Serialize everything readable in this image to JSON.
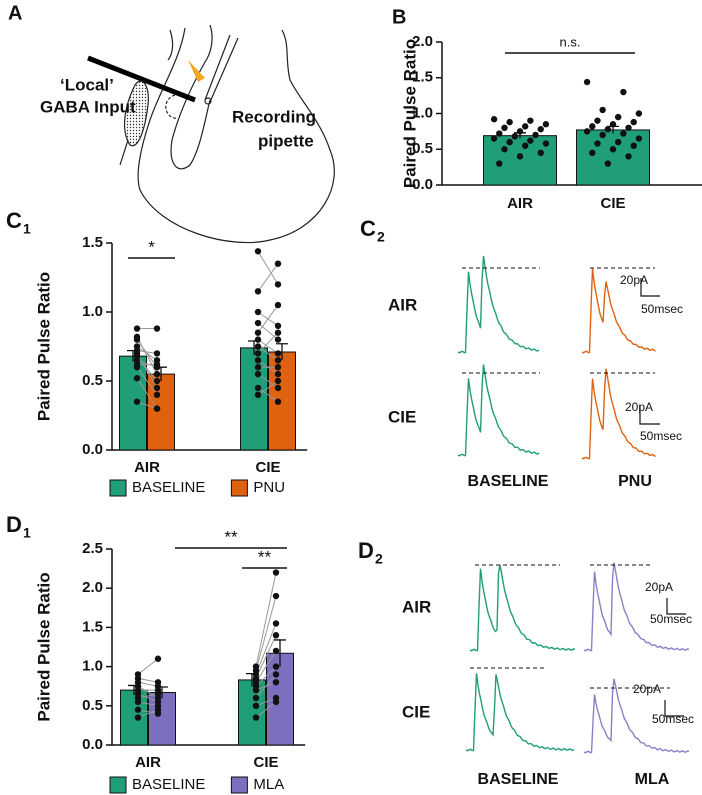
{
  "panel_labels": {
    "a": "A",
    "b": "B",
    "c1": {
      "letter": "C",
      "sub": "1"
    },
    "c2": {
      "letter": "C",
      "sub": "2"
    },
    "d1": {
      "letter": "D",
      "sub": "1"
    },
    "d2": {
      "letter": "D",
      "sub": "2"
    }
  },
  "diagram": {
    "input_line1": "‘Local’",
    "input_line2": "GABA Input",
    "pipette_line1": "Recording",
    "pipette_line2": "pipette"
  },
  "traces_c2": {
    "rows": [
      "AIR",
      "CIE"
    ],
    "columns": [
      "BASELINE",
      "PNU"
    ],
    "scale_y": [
      "20pA",
      "20pA"
    ],
    "scale_x": [
      "50msec",
      "50msec"
    ]
  },
  "traces_d2": {
    "rows": [
      "AIR",
      "CIE"
    ],
    "columns": [
      "BASELINE",
      "MLA"
    ],
    "scale_y": [
      "20pA",
      "20pA"
    ],
    "scale_x": [
      "50msec",
      "50msec"
    ]
  },
  "chart_data": [
    {
      "type": "bar",
      "ylabel": "Paired Pulse Ratio",
      "categories": [
        "AIR",
        "CIE"
      ],
      "series": [
        {
          "color": "#1f9e78",
          "values": [
            0.69,
            0.77
          ],
          "errors": [
            0.04,
            0.05
          ],
          "points": [
            [
              0.92,
              0.9,
              0.88,
              0.85,
              0.82,
              0.8,
              0.78,
              0.75,
              0.72,
              0.7,
              0.68,
              0.65,
              0.62,
              0.6,
              0.58,
              0.55,
              0.5,
              0.45,
              0.4,
              0.3
            ],
            [
              1.44,
              1.3,
              1.05,
              1.0,
              0.95,
              0.9,
              0.88,
              0.85,
              0.82,
              0.8,
              0.78,
              0.75,
              0.72,
              0.7,
              0.65,
              0.6,
              0.58,
              0.55,
              0.5,
              0.45,
              0.4,
              0.3
            ]
          ]
        }
      ],
      "ylim": [
        0,
        2
      ],
      "yticks": [
        {
          "value": 0,
          "label": "0.0"
        },
        0.5,
        {
          "value": 1,
          "label": "1.0"
        },
        1.5,
        {
          "value": 2,
          "label": "2.0"
        }
      ],
      "annotations": [
        "n.s."
      ]
    },
    {
      "type": "bar",
      "ylabel": "Paired Pulse Ratio",
      "categories": [
        "AIR",
        "CIE"
      ],
      "series": [
        {
          "name": "BASELINE",
          "color": "#1f9e78",
          "values": [
            0.68,
            0.74
          ],
          "errors": [
            0.04,
            0.05
          ],
          "points": [
            [
              0.88,
              0.82,
              0.8,
              0.75,
              0.72,
              0.7,
              0.68,
              0.65,
              0.62,
              0.6,
              0.52,
              0.35
            ],
            [
              1.44,
              1.15,
              1.0,
              0.92,
              0.85,
              0.8,
              0.75,
              0.7,
              0.65,
              0.6,
              0.55,
              0.45,
              0.4
            ]
          ]
        },
        {
          "name": "PNU",
          "color": "#e0620f",
          "values": [
            0.55,
            0.71
          ],
          "errors": [
            0.05,
            0.06
          ],
          "points": [
            [
              0.88,
              0.55,
              0.6,
              0.65,
              0.7,
              0.45,
              0.5,
              0.6,
              0.62,
              0.4,
              0.3,
              0.3
            ],
            [
              1.2,
              1.35,
              0.9,
              0.8,
              1.05,
              0.7,
              0.65,
              0.85,
              0.55,
              0.6,
              0.45,
              0.35,
              0.5
            ]
          ]
        }
      ],
      "ylim": [
        0,
        1.5
      ],
      "yticks": [
        {
          "value": 0,
          "label": "0.0"
        },
        0.5,
        {
          "value": 1,
          "label": "1.0"
        },
        1.5
      ],
      "annotations": [
        "*"
      ]
    },
    {
      "type": "bar",
      "ylabel": "Paired Pulse Ratio",
      "categories": [
        "AIR",
        "CIE"
      ],
      "series": [
        {
          "name": "BASELINE",
          "color": "#1f9e78",
          "values": [
            0.7,
            0.83
          ],
          "errors": [
            0.06,
            0.08
          ],
          "points": [
            [
              0.9,
              0.85,
              0.8,
              0.75,
              0.7,
              0.65,
              0.6,
              0.55,
              0.45,
              0.35
            ],
            [
              1.0,
              0.95,
              0.9,
              0.85,
              0.8,
              0.75,
              0.7,
              0.6,
              0.5,
              0.35
            ]
          ]
        },
        {
          "name": "MLA",
          "color": "#7b6fc0",
          "values": [
            0.67,
            1.17
          ],
          "errors": [
            0.07,
            0.17
          ],
          "points": [
            [
              1.1,
              0.8,
              0.75,
              0.6,
              0.7,
              0.55,
              0.65,
              0.5,
              0.4,
              0.45
            ],
            [
              2.2,
              1.9,
              1.55,
              1.4,
              1.2,
              1.0,
              0.8,
              0.9,
              0.6,
              0.55
            ]
          ]
        }
      ],
      "ylim": [
        0,
        2.5
      ],
      "yticks": [
        {
          "value": 0,
          "label": "0.0"
        },
        0.5,
        {
          "value": 1,
          "label": "1.0"
        },
        1.5,
        {
          "value": 2,
          "label": "2.0"
        },
        2.5
      ],
      "annotations": [
        "**",
        "**"
      ]
    }
  ]
}
